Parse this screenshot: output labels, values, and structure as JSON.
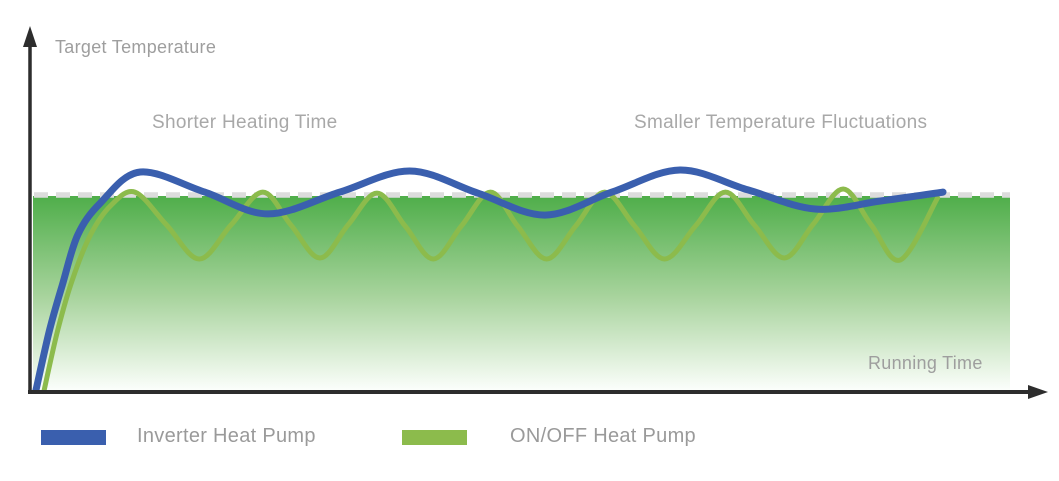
{
  "chart_data": {
    "type": "line",
    "title": "",
    "ylabel": "Target Temperature",
    "xlabel": "Running Time",
    "annotations": [
      "Shorter Heating Time",
      "Smaller Temperature Fluctuations"
    ],
    "x_range": [
      0,
      100
    ],
    "y_target_level": 100,
    "grid": false,
    "legend_position": "bottom",
    "colors": {
      "axis": "#2d2d2d",
      "target_dash": "#dcdcdc",
      "fill_gradient_top": "#4fae4a",
      "fill_gradient_mid": "#a9d49e",
      "fill_gradient_bottom": "#fdfffd"
    },
    "series": [
      {
        "name": "Inverter Heat Pump",
        "color": "#3a5fae",
        "stroke_width": 7,
        "points": [
          [
            0,
            0
          ],
          [
            1.5,
            30.8
          ],
          [
            2.9,
            53.8
          ],
          [
            4.6,
            79.5
          ],
          [
            7.1,
            95.9
          ],
          [
            11.5,
            111.8
          ],
          [
            18.6,
            101.5
          ],
          [
            25.6,
            90.3
          ],
          [
            33.5,
            101.5
          ],
          [
            41.2,
            112.3
          ],
          [
            48.7,
            101.0
          ],
          [
            56.1,
            89.7
          ],
          [
            63.5,
            101.5
          ],
          [
            71.0,
            112.8
          ],
          [
            78.5,
            102.6
          ],
          [
            85.9,
            92.8
          ],
          [
            93.1,
            96.9
          ],
          [
            100,
            101.5
          ]
        ]
      },
      {
        "name": "ON/OFF Heat Pump",
        "color": "#8cbb4c",
        "stroke_width": 5,
        "points": [
          [
            0.9,
            0
          ],
          [
            2.4,
            30.8
          ],
          [
            4.0,
            56.4
          ],
          [
            6.0,
            79.5
          ],
          [
            8.2,
            94.4
          ],
          [
            10.9,
            101.5
          ],
          [
            14.4,
            84.6
          ],
          [
            18.0,
            67.2
          ],
          [
            21.5,
            84.6
          ],
          [
            25.0,
            101.5
          ],
          [
            28.1,
            84.6
          ],
          [
            31.3,
            67.7
          ],
          [
            34.4,
            84.6
          ],
          [
            37.6,
            101.0
          ],
          [
            40.7,
            84.1
          ],
          [
            43.8,
            67.2
          ],
          [
            46.9,
            84.1
          ],
          [
            50.1,
            101.5
          ],
          [
            53.1,
            84.1
          ],
          [
            56.3,
            67.2
          ],
          [
            59.5,
            84.1
          ],
          [
            62.7,
            101.5
          ],
          [
            66.0,
            84.1
          ],
          [
            69.3,
            67.2
          ],
          [
            72.7,
            84.1
          ],
          [
            76.0,
            101.5
          ],
          [
            79.2,
            84.6
          ],
          [
            82.5,
            67.7
          ],
          [
            85.7,
            85.1
          ],
          [
            89.0,
            103.1
          ],
          [
            92.1,
            84.6
          ],
          [
            95.3,
            66.7
          ],
          [
            99.4,
            98.5
          ]
        ]
      }
    ]
  }
}
